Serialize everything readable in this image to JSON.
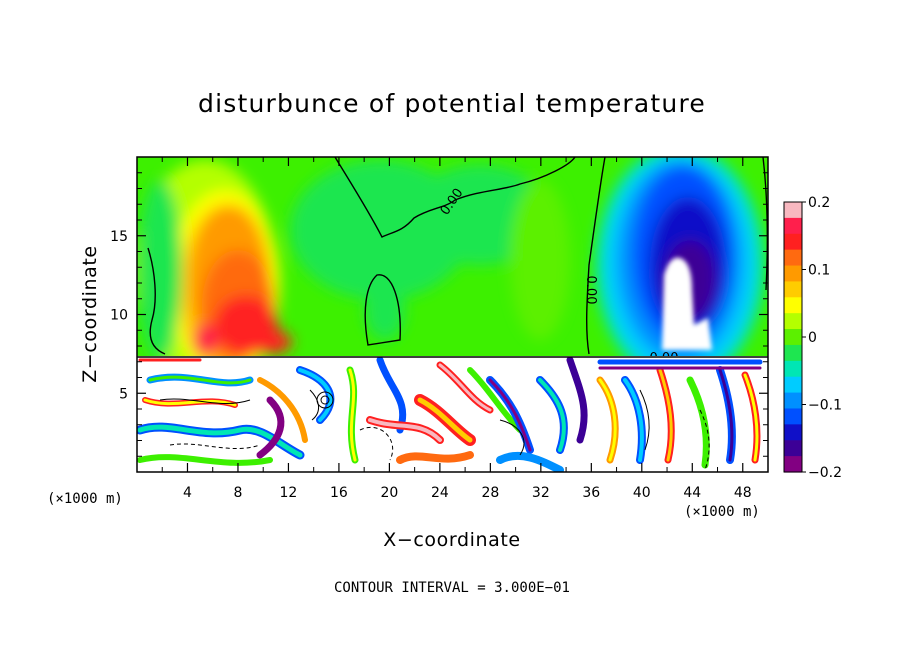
{
  "chart_data": {
    "type": "heatmap",
    "title": "disturbunce of potential temperature",
    "xlabel": "X−coordinate",
    "ylabel": "Z−coordinate",
    "x_unit": "(×1000 m)",
    "y_unit": "(×1000 m)",
    "xlim": [
      0,
      50
    ],
    "ylim": [
      0,
      20
    ],
    "x_ticks": [
      4,
      8,
      12,
      16,
      20,
      24,
      28,
      32,
      36,
      40,
      44,
      48
    ],
    "x_tick_labels": [
      "4",
      "8",
      "12",
      "16",
      "20",
      "24",
      "28",
      "32",
      "36",
      "40",
      "44",
      "48"
    ],
    "y_ticks": [
      5,
      10,
      15
    ],
    "y_tick_labels": [
      "5",
      "10",
      "15"
    ],
    "colorbar": {
      "range": [
        -0.2,
        0.2
      ],
      "ticks": [
        0.2,
        0.1,
        0,
        -0.1,
        -0.2
      ],
      "tick_labels": [
        "0.2",
        "0.1",
        "0",
        "−0.1",
        "−0.2"
      ],
      "colors": [
        "#f8b8c0",
        "#ff1f4c",
        "#ff2020",
        "#ff6a10",
        "#ff9a00",
        "#ffcc00",
        "#ffff00",
        "#b4ff00",
        "#5cf000",
        "#1ee650",
        "#00e6b4",
        "#00ccff",
        "#0090ff",
        "#0050ff",
        "#1010c8",
        "#3c0096",
        "#820082"
      ]
    },
    "contour_labels": [
      "0.00",
      "0.00",
      "0.00"
    ],
    "contour_interval_text": "CONTOUR INTERVAL = 3.000E−01",
    "upper_layer": {
      "z_range": [
        7.3,
        20
      ],
      "warm_maxima": [
        {
          "x": 6.5,
          "z": 14,
          "value": 0.13
        },
        {
          "x": 10.5,
          "z": 10,
          "value": 0.16
        }
      ],
      "cold_minimum": {
        "x": 43.5,
        "z": 11,
        "value": -0.23
      },
      "zero_contour_labels_at": [
        {
          "x": 26.5,
          "z": 17
        },
        {
          "x": 35.5,
          "z": 11.5
        }
      ]
    },
    "lower_layer": {
      "z_range": [
        0,
        7.3
      ],
      "description": "turbulent layer with large-amplitude disturbances"
    }
  }
}
